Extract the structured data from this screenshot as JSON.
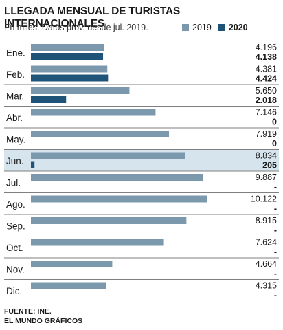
{
  "header": {
    "title": "LLEGADA MENSUAL DE TURISTAS INTERNACIONALES",
    "subtitle": "En miles. Datos prov. desde jul. 2019."
  },
  "legend": {
    "series_2019": "2019",
    "series_2020": "2020"
  },
  "colors": {
    "series_2019": "#7b98ad",
    "series_2020": "#1f5478",
    "highlight_row": "#d6e4ee",
    "row_separator": "#555555"
  },
  "chart_data": {
    "type": "bar",
    "orientation": "horizontal",
    "categories": [
      "Ene.",
      "Feb.",
      "Mar.",
      "Abr.",
      "May.",
      "Jun.",
      "Jul.",
      "Ago.",
      "Sep.",
      "Oct.",
      "Nov.",
      "Dic."
    ],
    "highlighted_category": "Jun.",
    "series": [
      {
        "name": "2019",
        "values": [
          4196,
          4381,
          5650,
          7146,
          7919,
          8834,
          9887,
          10122,
          8915,
          7624,
          4664,
          4315
        ],
        "labels": [
          "4.196",
          "4.381",
          "5.650",
          "7.146",
          "7.919",
          "8.834",
          "9.887",
          "10.122",
          "8.915",
          "7.624",
          "4.664",
          "4.315"
        ]
      },
      {
        "name": "2020",
        "values": [
          4138,
          4424,
          2018,
          0,
          0,
          205,
          null,
          null,
          null,
          null,
          null,
          null
        ],
        "labels": [
          "4.138",
          "4.424",
          "2.018",
          "0",
          "0",
          "205",
          "-",
          "-",
          "-",
          "-",
          "-",
          "-"
        ]
      }
    ],
    "xlim": [
      0,
      10122
    ]
  },
  "footer": {
    "source": "FUENTE: INE.",
    "credit": "EL MUNDO GRÁFICOS"
  }
}
